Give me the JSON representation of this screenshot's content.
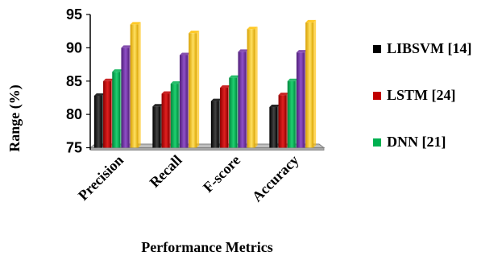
{
  "chart_data": {
    "type": "bar",
    "title": "",
    "xlabel": "Performance Metrics",
    "ylabel": "Range (%)",
    "ylim": [
      75,
      95
    ],
    "yticks": [
      75,
      80,
      85,
      90,
      95
    ],
    "grid": false,
    "legend_position": "right",
    "categories": [
      "Precision",
      "Recall",
      "F-score",
      "Accuracy"
    ],
    "series": [
      {
        "name": "LIBSVM [14]",
        "color": "#000000",
        "values": [
          82.8,
          81.2,
          82.0,
          81.1
        ]
      },
      {
        "name": "LSTM [24]",
        "color": "#c00000",
        "values": [
          85.0,
          83.1,
          84.0,
          82.9
        ]
      },
      {
        "name": "DNN [21]",
        "color": "#00b050",
        "values": [
          86.4,
          84.6,
          85.5,
          85.0
        ]
      },
      {
        "name": "",
        "color": "#7030a0",
        "values": [
          90.0,
          88.9,
          89.4,
          89.3
        ]
      },
      {
        "name": "",
        "color": "#ffc000",
        "values": [
          93.5,
          92.2,
          92.8,
          93.8
        ]
      }
    ]
  }
}
